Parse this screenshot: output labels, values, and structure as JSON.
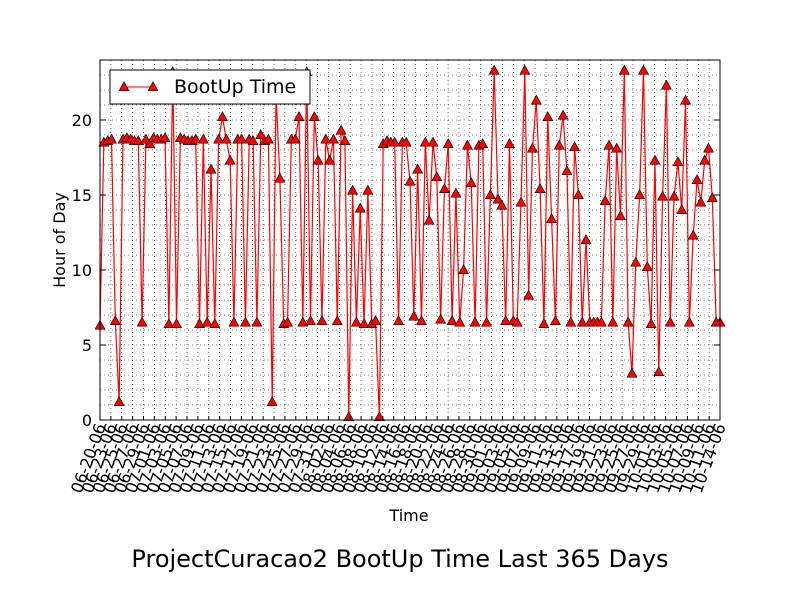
{
  "chart_data": {
    "type": "line",
    "title": "ProjectCuracao2 BootUp Time Last 365 Days",
    "xlabel": "Time",
    "ylabel": "Hour of Day",
    "ylim": [
      0,
      24
    ],
    "yticks": [
      0,
      5,
      10,
      15,
      20
    ],
    "grid": true,
    "legend": "top-left",
    "color": "#ff0000",
    "marker": "triangle",
    "x_tick_labels": [
      "06-20-06",
      "06-23-06",
      "06-25-06",
      "06-27-06",
      "06-29-06",
      "07-01-06",
      "07-03-06",
      "07-05-06",
      "07-07-06",
      "07-09-06",
      "07-11-06",
      "07-13-06",
      "07-15-06",
      "07-17-06",
      "07-19-06",
      "07-21-06",
      "07-23-06",
      "07-25-06",
      "07-27-06",
      "07-29-06",
      "07-31-06",
      "08-02-06",
      "08-04-06",
      "08-06-06",
      "08-08-06",
      "08-10-06",
      "08-12-06",
      "08-14-06",
      "08-16-06",
      "08-18-06",
      "08-20-06",
      "08-22-06",
      "08-24-06",
      "08-26-06",
      "08-28-06",
      "08-30-06",
      "09-01-06",
      "09-03-06",
      "09-05-06",
      "09-07-06",
      "09-09-06",
      "09-11-06",
      "09-13-06",
      "09-15-06",
      "09-17-06",
      "09-19-06",
      "09-21-06",
      "09-23-06",
      "09-25-06",
      "09-27-06",
      "09-29-06",
      "10-01-06",
      "10-03-06",
      "10-05-06",
      "10-07-06",
      "10-09-06",
      "10-11-06",
      "10-14-06"
    ],
    "series": [
      {
        "name": "BootUp Time",
        "values": [
          6.3,
          18.5,
          18.6,
          18.7,
          6.6,
          1.2,
          18.7,
          18.8,
          18.7,
          18.6,
          18.6,
          6.5,
          18.7,
          18.4,
          18.8,
          18.7,
          18.7,
          18.8,
          6.4,
          23.2,
          6.4,
          18.8,
          18.7,
          18.6,
          18.6,
          18.7,
          6.4,
          18.7,
          6.5,
          16.7,
          6.4,
          18.7,
          20.2,
          18.7,
          17.3,
          6.5,
          18.7,
          18.7,
          6.5,
          18.7,
          18.6,
          6.5,
          19.0,
          18.6,
          18.7,
          1.2,
          21.7,
          16.1,
          6.4,
          6.5,
          18.7,
          18.7,
          20.2,
          6.5,
          23.2,
          6.6,
          20.2,
          17.3,
          6.6,
          18.7,
          17.3,
          18.7,
          6.6,
          19.3,
          18.6,
          0.2,
          15.3,
          6.5,
          14.1,
          6.4,
          15.3,
          6.4,
          6.6,
          0.2,
          18.4,
          18.6,
          18.5,
          18.5,
          6.6,
          18.5,
          18.5,
          15.9,
          6.9,
          16.7,
          6.6,
          18.5,
          13.3,
          18.5,
          16.2,
          6.7,
          15.4,
          18.4,
          6.6,
          15.1,
          6.5,
          10.0,
          18.3,
          15.8,
          6.5,
          18.3,
          18.4,
          6.5,
          15.0,
          23.3,
          14.7,
          14.3,
          6.6,
          18.4,
          6.6,
          6.5,
          14.5,
          23.3,
          8.3,
          18.1,
          21.3,
          15.4,
          6.4,
          20.2,
          13.4,
          6.6,
          18.3,
          20.3,
          16.6,
          6.5,
          18.2,
          15.0,
          6.5,
          12.0,
          6.5,
          6.5,
          6.5,
          6.5,
          14.6,
          18.3,
          6.5,
          18.1,
          13.6,
          23.3,
          6.5,
          3.1,
          10.5,
          15.0,
          23.3,
          10.2,
          6.4,
          17.3,
          3.2,
          14.9,
          22.3,
          6.5,
          14.9,
          17.2,
          14.0,
          21.3,
          6.5,
          12.3,
          16.0,
          14.5,
          17.3,
          18.1,
          14.8,
          6.5,
          6.5
        ]
      }
    ]
  }
}
